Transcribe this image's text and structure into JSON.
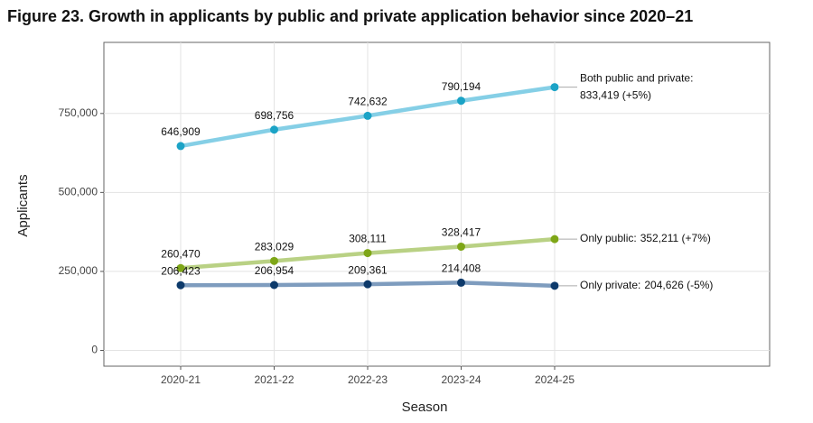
{
  "chart_data": {
    "type": "line",
    "title": "Figure 23. Growth in applicants by public and private application behavior since 2020–21",
    "xlabel": "Season",
    "ylabel": "Applicants",
    "categories": [
      "2020-21",
      "2021-22",
      "2022-23",
      "2023-24",
      "2024-25"
    ],
    "series": [
      {
        "name": "Both public and private:",
        "color": "#1ba3c6",
        "line_color": "#85cfe6",
        "values": [
          646909,
          698756,
          742632,
          790194,
          833419
        ],
        "value_labels": [
          "646,909",
          "698,756",
          "742,632",
          "790,194",
          "833,419 (+5%)"
        ]
      },
      {
        "name": "Only public:",
        "color": "#7ea617",
        "line_color": "#b9d184",
        "values": [
          260470,
          283029,
          308111,
          328417,
          352211
        ],
        "value_labels": [
          "260,470",
          "283,029",
          "308,111",
          "328,417",
          "352,211 (+7%)"
        ]
      },
      {
        "name": "Only private:",
        "color": "#0d3a6b",
        "line_color": "#7e9cbe",
        "values": [
          206423,
          206954,
          209361,
          214408,
          204626
        ],
        "value_labels": [
          "206,423",
          "206,954",
          "209,361",
          "214,408",
          "204,626 (-5%)"
        ]
      }
    ],
    "ylim": [
      -50000,
      975000
    ],
    "yticks": [
      0,
      {
        "value": 250000,
        "label": "250,000"
      },
      {
        "value": 500000,
        "label": "500,000"
      },
      {
        "value": 750000,
        "label": "750,000"
      }
    ],
    "grid": true
  }
}
